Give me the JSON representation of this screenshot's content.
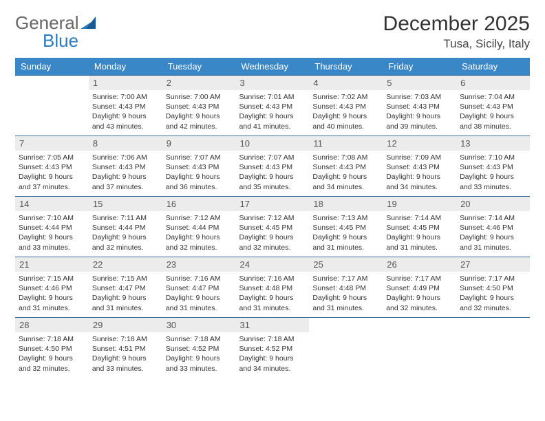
{
  "logo": {
    "part1": "General",
    "part2": "Blue"
  },
  "title": "December 2025",
  "location": "Tusa, Sicily, Italy",
  "colors": {
    "header_bg": "#3a87c8",
    "header_text": "#ffffff",
    "daynum_bg": "#ececec",
    "row_divider": "#3a6a9a",
    "logo_accent": "#2b7bbf",
    "text": "#333333"
  },
  "dayNames": [
    "Sunday",
    "Monday",
    "Tuesday",
    "Wednesday",
    "Thursday",
    "Friday",
    "Saturday"
  ],
  "weeks": [
    [
      null,
      {
        "n": "1",
        "sr": "7:00 AM",
        "ss": "4:43 PM",
        "dl": "9 hours and 43 minutes."
      },
      {
        "n": "2",
        "sr": "7:00 AM",
        "ss": "4:43 PM",
        "dl": "9 hours and 42 minutes."
      },
      {
        "n": "3",
        "sr": "7:01 AM",
        "ss": "4:43 PM",
        "dl": "9 hours and 41 minutes."
      },
      {
        "n": "4",
        "sr": "7:02 AM",
        "ss": "4:43 PM",
        "dl": "9 hours and 40 minutes."
      },
      {
        "n": "5",
        "sr": "7:03 AM",
        "ss": "4:43 PM",
        "dl": "9 hours and 39 minutes."
      },
      {
        "n": "6",
        "sr": "7:04 AM",
        "ss": "4:43 PM",
        "dl": "9 hours and 38 minutes."
      }
    ],
    [
      {
        "n": "7",
        "sr": "7:05 AM",
        "ss": "4:43 PM",
        "dl": "9 hours and 37 minutes."
      },
      {
        "n": "8",
        "sr": "7:06 AM",
        "ss": "4:43 PM",
        "dl": "9 hours and 37 minutes."
      },
      {
        "n": "9",
        "sr": "7:07 AM",
        "ss": "4:43 PM",
        "dl": "9 hours and 36 minutes."
      },
      {
        "n": "10",
        "sr": "7:07 AM",
        "ss": "4:43 PM",
        "dl": "9 hours and 35 minutes."
      },
      {
        "n": "11",
        "sr": "7:08 AM",
        "ss": "4:43 PM",
        "dl": "9 hours and 34 minutes."
      },
      {
        "n": "12",
        "sr": "7:09 AM",
        "ss": "4:43 PM",
        "dl": "9 hours and 34 minutes."
      },
      {
        "n": "13",
        "sr": "7:10 AM",
        "ss": "4:43 PM",
        "dl": "9 hours and 33 minutes."
      }
    ],
    [
      {
        "n": "14",
        "sr": "7:10 AM",
        "ss": "4:44 PM",
        "dl": "9 hours and 33 minutes."
      },
      {
        "n": "15",
        "sr": "7:11 AM",
        "ss": "4:44 PM",
        "dl": "9 hours and 32 minutes."
      },
      {
        "n": "16",
        "sr": "7:12 AM",
        "ss": "4:44 PM",
        "dl": "9 hours and 32 minutes."
      },
      {
        "n": "17",
        "sr": "7:12 AM",
        "ss": "4:45 PM",
        "dl": "9 hours and 32 minutes."
      },
      {
        "n": "18",
        "sr": "7:13 AM",
        "ss": "4:45 PM",
        "dl": "9 hours and 31 minutes."
      },
      {
        "n": "19",
        "sr": "7:14 AM",
        "ss": "4:45 PM",
        "dl": "9 hours and 31 minutes."
      },
      {
        "n": "20",
        "sr": "7:14 AM",
        "ss": "4:46 PM",
        "dl": "9 hours and 31 minutes."
      }
    ],
    [
      {
        "n": "21",
        "sr": "7:15 AM",
        "ss": "4:46 PM",
        "dl": "9 hours and 31 minutes."
      },
      {
        "n": "22",
        "sr": "7:15 AM",
        "ss": "4:47 PM",
        "dl": "9 hours and 31 minutes."
      },
      {
        "n": "23",
        "sr": "7:16 AM",
        "ss": "4:47 PM",
        "dl": "9 hours and 31 minutes."
      },
      {
        "n": "24",
        "sr": "7:16 AM",
        "ss": "4:48 PM",
        "dl": "9 hours and 31 minutes."
      },
      {
        "n": "25",
        "sr": "7:17 AM",
        "ss": "4:48 PM",
        "dl": "9 hours and 31 minutes."
      },
      {
        "n": "26",
        "sr": "7:17 AM",
        "ss": "4:49 PM",
        "dl": "9 hours and 32 minutes."
      },
      {
        "n": "27",
        "sr": "7:17 AM",
        "ss": "4:50 PM",
        "dl": "9 hours and 32 minutes."
      }
    ],
    [
      {
        "n": "28",
        "sr": "7:18 AM",
        "ss": "4:50 PM",
        "dl": "9 hours and 32 minutes."
      },
      {
        "n": "29",
        "sr": "7:18 AM",
        "ss": "4:51 PM",
        "dl": "9 hours and 33 minutes."
      },
      {
        "n": "30",
        "sr": "7:18 AM",
        "ss": "4:52 PM",
        "dl": "9 hours and 33 minutes."
      },
      {
        "n": "31",
        "sr": "7:18 AM",
        "ss": "4:52 PM",
        "dl": "9 hours and 34 minutes."
      },
      null,
      null,
      null
    ]
  ],
  "labels": {
    "sunrise": "Sunrise: ",
    "sunset": "Sunset: ",
    "daylight": "Daylight: "
  }
}
